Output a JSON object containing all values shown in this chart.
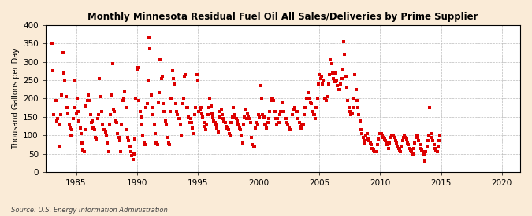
{
  "title": "Monthly Minnesota Residual Fuel Oil All Sales/Deliveries by Prime Supplier",
  "ylabel": "Thousand Gallons per Day",
  "source": "Source: U.S. Energy Information Administration",
  "bg_color": "#faebd7",
  "plot_bg_color": "#ffffff",
  "marker_color": "#dd0000",
  "xlim": [
    1982.5,
    2021.5
  ],
  "ylim": [
    0,
    400
  ],
  "xticks": [
    1985,
    1990,
    1995,
    2000,
    2005,
    2010,
    2015,
    2020
  ],
  "yticks": [
    0,
    50,
    100,
    150,
    200,
    250,
    300,
    350,
    400
  ],
  "data": [
    [
      1983.0,
      350
    ],
    [
      1983.08,
      275
    ],
    [
      1983.17,
      155
    ],
    [
      1983.25,
      195
    ],
    [
      1983.33,
      195
    ],
    [
      1983.42,
      140
    ],
    [
      1983.5,
      145
    ],
    [
      1983.58,
      130
    ],
    [
      1983.67,
      70
    ],
    [
      1983.75,
      155
    ],
    [
      1983.83,
      210
    ],
    [
      1983.92,
      325
    ],
    [
      1984.0,
      270
    ],
    [
      1984.08,
      250
    ],
    [
      1984.17,
      205
    ],
    [
      1984.25,
      175
    ],
    [
      1984.33,
      160
    ],
    [
      1984.42,
      130
    ],
    [
      1984.5,
      120
    ],
    [
      1984.58,
      100
    ],
    [
      1984.67,
      115
    ],
    [
      1984.75,
      145
    ],
    [
      1984.83,
      175
    ],
    [
      1984.92,
      250
    ],
    [
      1985.0,
      160
    ],
    [
      1985.08,
      200
    ],
    [
      1985.17,
      165
    ],
    [
      1985.25,
      140
    ],
    [
      1985.33,
      120
    ],
    [
      1985.42,
      105
    ],
    [
      1985.5,
      80
    ],
    [
      1985.58,
      60
    ],
    [
      1985.67,
      55
    ],
    [
      1985.75,
      115
    ],
    [
      1985.83,
      180
    ],
    [
      1985.92,
      195
    ],
    [
      1986.0,
      210
    ],
    [
      1986.08,
      195
    ],
    [
      1986.17,
      155
    ],
    [
      1986.25,
      135
    ],
    [
      1986.33,
      140
    ],
    [
      1986.42,
      120
    ],
    [
      1986.5,
      115
    ],
    [
      1986.58,
      95
    ],
    [
      1986.67,
      90
    ],
    [
      1986.75,
      145
    ],
    [
      1986.83,
      155
    ],
    [
      1986.92,
      255
    ],
    [
      1987.0,
      205
    ],
    [
      1987.08,
      165
    ],
    [
      1987.17,
      130
    ],
    [
      1987.25,
      115
    ],
    [
      1987.33,
      115
    ],
    [
      1987.42,
      110
    ],
    [
      1987.5,
      100
    ],
    [
      1987.58,
      80
    ],
    [
      1987.67,
      55
    ],
    [
      1987.75,
      130
    ],
    [
      1987.83,
      155
    ],
    [
      1987.92,
      210
    ],
    [
      1988.0,
      295
    ],
    [
      1988.08,
      170
    ],
    [
      1988.17,
      165
    ],
    [
      1988.25,
      140
    ],
    [
      1988.33,
      135
    ],
    [
      1988.42,
      105
    ],
    [
      1988.5,
      95
    ],
    [
      1988.58,
      85
    ],
    [
      1988.67,
      55
    ],
    [
      1988.75,
      130
    ],
    [
      1988.83,
      195
    ],
    [
      1988.92,
      200
    ],
    [
      1989.0,
      220
    ],
    [
      1989.08,
      175
    ],
    [
      1989.17,
      115
    ],
    [
      1989.25,
      95
    ],
    [
      1989.33,
      85
    ],
    [
      1989.42,
      70
    ],
    [
      1989.5,
      55
    ],
    [
      1989.58,
      45
    ],
    [
      1989.67,
      35
    ],
    [
      1989.75,
      50
    ],
    [
      1989.83,
      90
    ],
    [
      1989.92,
      200
    ],
    [
      1990.0,
      280
    ],
    [
      1990.08,
      285
    ],
    [
      1990.17,
      195
    ],
    [
      1990.25,
      165
    ],
    [
      1990.33,
      150
    ],
    [
      1990.42,
      130
    ],
    [
      1990.5,
      100
    ],
    [
      1990.58,
      80
    ],
    [
      1990.67,
      75
    ],
    [
      1990.75,
      175
    ],
    [
      1990.83,
      185
    ],
    [
      1990.92,
      250
    ],
    [
      1991.0,
      365
    ],
    [
      1991.08,
      335
    ],
    [
      1991.17,
      210
    ],
    [
      1991.25,
      175
    ],
    [
      1991.33,
      155
    ],
    [
      1991.42,
      130
    ],
    [
      1991.5,
      105
    ],
    [
      1991.58,
      80
    ],
    [
      1991.67,
      75
    ],
    [
      1991.75,
      190
    ],
    [
      1991.83,
      215
    ],
    [
      1991.92,
      305
    ],
    [
      1992.0,
      255
    ],
    [
      1992.08,
      260
    ],
    [
      1992.17,
      185
    ],
    [
      1992.25,
      165
    ],
    [
      1992.33,
      140
    ],
    [
      1992.42,
      130
    ],
    [
      1992.5,
      95
    ],
    [
      1992.58,
      80
    ],
    [
      1992.67,
      75
    ],
    [
      1992.75,
      165
    ],
    [
      1992.83,
      200
    ],
    [
      1992.92,
      275
    ],
    [
      1993.0,
      255
    ],
    [
      1993.08,
      240
    ],
    [
      1993.17,
      185
    ],
    [
      1993.25,
      165
    ],
    [
      1993.33,
      155
    ],
    [
      1993.42,
      145
    ],
    [
      1993.5,
      145
    ],
    [
      1993.58,
      130
    ],
    [
      1993.67,
      100
    ],
    [
      1993.75,
      185
    ],
    [
      1993.83,
      200
    ],
    [
      1993.92,
      260
    ],
    [
      1994.0,
      265
    ],
    [
      1994.08,
      175
    ],
    [
      1994.17,
      175
    ],
    [
      1994.25,
      150
    ],
    [
      1994.33,
      135
    ],
    [
      1994.42,
      145
    ],
    [
      1994.5,
      135
    ],
    [
      1994.58,
      120
    ],
    [
      1994.67,
      105
    ],
    [
      1994.75,
      155
    ],
    [
      1994.83,
      175
    ],
    [
      1994.92,
      265
    ],
    [
      1995.0,
      250
    ],
    [
      1995.08,
      165
    ],
    [
      1995.17,
      170
    ],
    [
      1995.25,
      175
    ],
    [
      1995.33,
      160
    ],
    [
      1995.42,
      150
    ],
    [
      1995.5,
      135
    ],
    [
      1995.58,
      125
    ],
    [
      1995.67,
      115
    ],
    [
      1995.75,
      130
    ],
    [
      1995.83,
      155
    ],
    [
      1995.92,
      175
    ],
    [
      1996.0,
      200
    ],
    [
      1996.08,
      180
    ],
    [
      1996.17,
      160
    ],
    [
      1996.25,
      150
    ],
    [
      1996.33,
      140
    ],
    [
      1996.42,
      135
    ],
    [
      1996.5,
      130
    ],
    [
      1996.58,
      120
    ],
    [
      1996.67,
      110
    ],
    [
      1996.75,
      150
    ],
    [
      1996.83,
      165
    ],
    [
      1996.92,
      170
    ],
    [
      1997.0,
      155
    ],
    [
      1997.08,
      145
    ],
    [
      1997.17,
      140
    ],
    [
      1997.25,
      135
    ],
    [
      1997.33,
      125
    ],
    [
      1997.42,
      120
    ],
    [
      1997.5,
      115
    ],
    [
      1997.58,
      105
    ],
    [
      1997.67,
      100
    ],
    [
      1997.75,
      135
    ],
    [
      1997.83,
      150
    ],
    [
      1997.92,
      175
    ],
    [
      1998.0,
      155
    ],
    [
      1998.08,
      150
    ],
    [
      1998.17,
      145
    ],
    [
      1998.25,
      140
    ],
    [
      1998.33,
      130
    ],
    [
      1998.42,
      120
    ],
    [
      1998.5,
      115
    ],
    [
      1998.58,
      100
    ],
    [
      1998.67,
      80
    ],
    [
      1998.75,
      130
    ],
    [
      1998.83,
      150
    ],
    [
      1998.92,
      170
    ],
    [
      1999.0,
      145
    ],
    [
      1999.08,
      160
    ],
    [
      1999.17,
      150
    ],
    [
      1999.25,
      145
    ],
    [
      1999.33,
      135
    ],
    [
      1999.42,
      95
    ],
    [
      1999.5,
      75
    ],
    [
      1999.58,
      70
    ],
    [
      1999.67,
      70
    ],
    [
      1999.75,
      120
    ],
    [
      1999.83,
      135
    ],
    [
      1999.92,
      130
    ],
    [
      2000.0,
      155
    ],
    [
      2000.08,
      150
    ],
    [
      2000.17,
      235
    ],
    [
      2000.25,
      200
    ],
    [
      2000.33,
      155
    ],
    [
      2000.42,
      150
    ],
    [
      2000.5,
      130
    ],
    [
      2000.58,
      130
    ],
    [
      2000.67,
      120
    ],
    [
      2000.75,
      135
    ],
    [
      2000.83,
      145
    ],
    [
      2000.92,
      165
    ],
    [
      2001.0,
      195
    ],
    [
      2001.08,
      200
    ],
    [
      2001.17,
      200
    ],
    [
      2001.25,
      195
    ],
    [
      2001.33,
      165
    ],
    [
      2001.42,
      145
    ],
    [
      2001.5,
      130
    ],
    [
      2001.58,
      145
    ],
    [
      2001.67,
      135
    ],
    [
      2001.75,
      155
    ],
    [
      2001.83,
      165
    ],
    [
      2001.92,
      190
    ],
    [
      2002.0,
      165
    ],
    [
      2002.08,
      165
    ],
    [
      2002.17,
      145
    ],
    [
      2002.25,
      145
    ],
    [
      2002.33,
      135
    ],
    [
      2002.42,
      130
    ],
    [
      2002.5,
      120
    ],
    [
      2002.58,
      115
    ],
    [
      2002.67,
      115
    ],
    [
      2002.75,
      155
    ],
    [
      2002.83,
      170
    ],
    [
      2002.92,
      170
    ],
    [
      2003.0,
      175
    ],
    [
      2003.08,
      165
    ],
    [
      2003.17,
      165
    ],
    [
      2003.25,
      145
    ],
    [
      2003.33,
      135
    ],
    [
      2003.42,
      125
    ],
    [
      2003.5,
      120
    ],
    [
      2003.58,
      130
    ],
    [
      2003.67,
      130
    ],
    [
      2003.75,
      155
    ],
    [
      2003.83,
      175
    ],
    [
      2003.92,
      200
    ],
    [
      2004.0,
      200
    ],
    [
      2004.08,
      215
    ],
    [
      2004.17,
      200
    ],
    [
      2004.25,
      190
    ],
    [
      2004.33,
      185
    ],
    [
      2004.42,
      165
    ],
    [
      2004.5,
      155
    ],
    [
      2004.58,
      155
    ],
    [
      2004.67,
      145
    ],
    [
      2004.75,
      175
    ],
    [
      2004.83,
      200
    ],
    [
      2004.92,
      240
    ],
    [
      2005.0,
      265
    ],
    [
      2005.08,
      255
    ],
    [
      2005.17,
      260
    ],
    [
      2005.25,
      240
    ],
    [
      2005.33,
      250
    ],
    [
      2005.42,
      200
    ],
    [
      2005.5,
      200
    ],
    [
      2005.58,
      195
    ],
    [
      2005.67,
      205
    ],
    [
      2005.75,
      240
    ],
    [
      2005.83,
      265
    ],
    [
      2005.92,
      305
    ],
    [
      2006.0,
      295
    ],
    [
      2006.08,
      270
    ],
    [
      2006.17,
      255
    ],
    [
      2006.25,
      245
    ],
    [
      2006.33,
      270
    ],
    [
      2006.42,
      250
    ],
    [
      2006.5,
      235
    ],
    [
      2006.58,
      225
    ],
    [
      2006.67,
      225
    ],
    [
      2006.75,
      240
    ],
    [
      2006.83,
      255
    ],
    [
      2006.92,
      280
    ],
    [
      2007.0,
      355
    ],
    [
      2007.08,
      320
    ],
    [
      2007.17,
      260
    ],
    [
      2007.25,
      230
    ],
    [
      2007.33,
      195
    ],
    [
      2007.42,
      175
    ],
    [
      2007.5,
      165
    ],
    [
      2007.58,
      155
    ],
    [
      2007.67,
      160
    ],
    [
      2007.75,
      175
    ],
    [
      2007.83,
      200
    ],
    [
      2007.92,
      265
    ],
    [
      2008.0,
      225
    ],
    [
      2008.08,
      195
    ],
    [
      2008.17,
      175
    ],
    [
      2008.25,
      155
    ],
    [
      2008.33,
      140
    ],
    [
      2008.42,
      115
    ],
    [
      2008.5,
      105
    ],
    [
      2008.58,
      95
    ],
    [
      2008.67,
      85
    ],
    [
      2008.75,
      80
    ],
    [
      2008.83,
      100
    ],
    [
      2008.92,
      105
    ],
    [
      2009.0,
      90
    ],
    [
      2009.08,
      85
    ],
    [
      2009.17,
      80
    ],
    [
      2009.25,
      75
    ],
    [
      2009.33,
      65
    ],
    [
      2009.42,
      60
    ],
    [
      2009.5,
      55
    ],
    [
      2009.58,
      55
    ],
    [
      2009.67,
      55
    ],
    [
      2009.75,
      75
    ],
    [
      2009.83,
      90
    ],
    [
      2009.92,
      105
    ],
    [
      2010.0,
      105
    ],
    [
      2010.08,
      105
    ],
    [
      2010.17,
      100
    ],
    [
      2010.25,
      95
    ],
    [
      2010.33,
      90
    ],
    [
      2010.42,
      85
    ],
    [
      2010.5,
      80
    ],
    [
      2010.58,
      75
    ],
    [
      2010.67,
      65
    ],
    [
      2010.75,
      80
    ],
    [
      2010.83,
      95
    ],
    [
      2010.92,
      100
    ],
    [
      2011.0,
      100
    ],
    [
      2011.08,
      100
    ],
    [
      2011.17,
      95
    ],
    [
      2011.25,
      85
    ],
    [
      2011.33,
      80
    ],
    [
      2011.42,
      70
    ],
    [
      2011.5,
      65
    ],
    [
      2011.58,
      60
    ],
    [
      2011.67,
      55
    ],
    [
      2011.75,
      70
    ],
    [
      2011.83,
      85
    ],
    [
      2011.92,
      95
    ],
    [
      2012.0,
      100
    ],
    [
      2012.08,
      95
    ],
    [
      2012.17,
      90
    ],
    [
      2012.25,
      80
    ],
    [
      2012.33,
      75
    ],
    [
      2012.42,
      65
    ],
    [
      2012.5,
      60
    ],
    [
      2012.58,
      55
    ],
    [
      2012.67,
      50
    ],
    [
      2012.75,
      65
    ],
    [
      2012.83,
      80
    ],
    [
      2012.92,
      95
    ],
    [
      2013.0,
      100
    ],
    [
      2013.08,
      95
    ],
    [
      2013.17,
      85
    ],
    [
      2013.25,
      75
    ],
    [
      2013.33,
      65
    ],
    [
      2013.42,
      60
    ],
    [
      2013.5,
      55
    ],
    [
      2013.58,
      50
    ],
    [
      2013.67,
      30
    ],
    [
      2013.75,
      55
    ],
    [
      2013.83,
      70
    ],
    [
      2013.92,
      85
    ],
    [
      2014.0,
      100
    ],
    [
      2014.08,
      175
    ],
    [
      2014.17,
      105
    ],
    [
      2014.25,
      95
    ],
    [
      2014.33,
      85
    ],
    [
      2014.42,
      75
    ],
    [
      2014.5,
      65
    ],
    [
      2014.58,
      60
    ],
    [
      2014.67,
      55
    ],
    [
      2014.75,
      70
    ],
    [
      2014.83,
      85
    ],
    [
      2014.92,
      100
    ]
  ]
}
